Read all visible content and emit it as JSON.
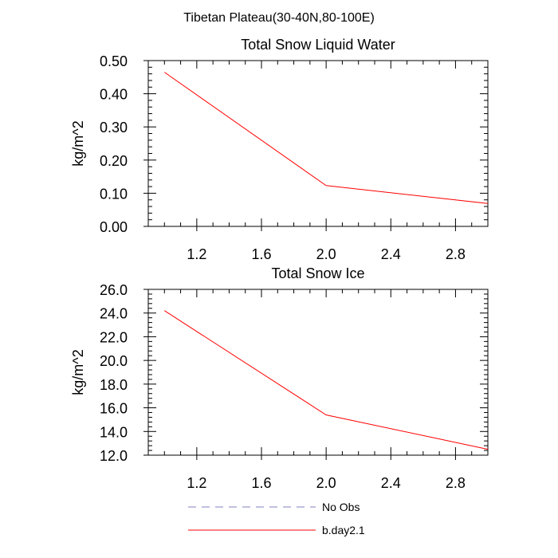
{
  "figure_title": "Tibetan Plateau(30-40N,80-100E)",
  "colors": {
    "series": "#ff0000",
    "no_obs": "#8080c0",
    "axis": "#000000"
  },
  "legend": [
    {
      "label": "No Obs",
      "style": "dashed"
    },
    {
      "label": "b.day2.1",
      "style": "solid"
    }
  ],
  "chart_data": [
    {
      "type": "line",
      "title": "Total Snow Liquid Water",
      "ylabel": "kg/m^2",
      "xlabel": "",
      "xlim": [
        0.9,
        3.0
      ],
      "ylim": [
        0.0,
        0.5
      ],
      "xticks": [
        1.2,
        1.6,
        2.0,
        2.4,
        2.8
      ],
      "xtick_labels": [
        "1.2",
        "1.6",
        "2.0",
        "2.4",
        "2.8"
      ],
      "yticks": [
        0.0,
        0.1,
        0.2,
        0.3,
        0.4,
        0.5
      ],
      "ytick_labels": [
        "0.00",
        "0.10",
        "0.20",
        "0.30",
        "0.40",
        "0.50"
      ],
      "series": [
        {
          "name": "b.day2.1",
          "x": [
            1.0,
            2.0,
            3.0
          ],
          "values": [
            0.465,
            0.123,
            0.069
          ]
        }
      ]
    },
    {
      "type": "line",
      "title": "Total Snow Ice",
      "ylabel": "kg/m^2",
      "xlabel": "",
      "xlim": [
        0.9,
        3.0
      ],
      "ylim": [
        12.0,
        26.0
      ],
      "xticks": [
        1.2,
        1.6,
        2.0,
        2.4,
        2.8
      ],
      "xtick_labels": [
        "1.2",
        "1.6",
        "2.0",
        "2.4",
        "2.8"
      ],
      "yticks": [
        12,
        14,
        16,
        18,
        20,
        22,
        24,
        26
      ],
      "ytick_labels": [
        "12.0",
        "14.0",
        "16.0",
        "18.0",
        "20.0",
        "22.0",
        "24.0",
        "26.0"
      ],
      "series": [
        {
          "name": "b.day2.1",
          "x": [
            1.0,
            2.0,
            3.0
          ],
          "values": [
            24.2,
            15.4,
            12.5
          ]
        }
      ]
    }
  ]
}
